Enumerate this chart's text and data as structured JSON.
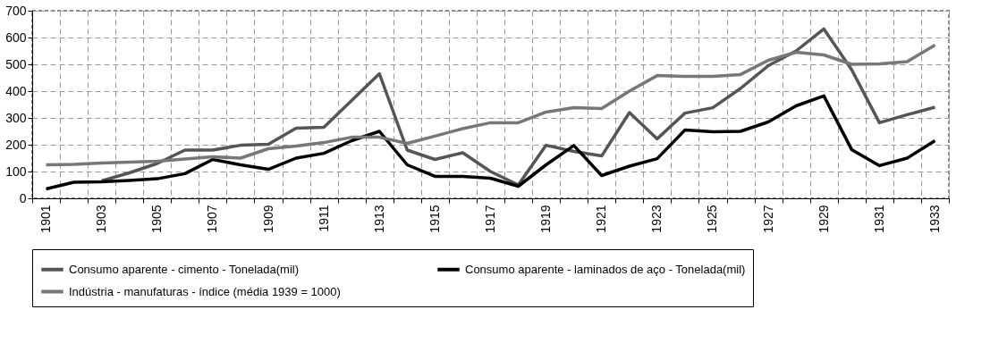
{
  "chart_data": {
    "type": "line",
    "categories": [
      "1901",
      null,
      "1903",
      null,
      "1905",
      null,
      "1907",
      null,
      "1909",
      null,
      "1911",
      null,
      "1913",
      null,
      "1915",
      null,
      "1917",
      null,
      "1919",
      null,
      "1921",
      null,
      "1923",
      null,
      "1925",
      null,
      "1927",
      null,
      "1929",
      null,
      "1931",
      null,
      "1933"
    ],
    "series": [
      {
        "name": "Consumo aparente - cimento - Tonelada(mil)",
        "color": "#555555",
        "values": [
          null,
          null,
          65,
          95,
          130,
          180,
          180,
          198,
          202,
          262,
          265,
          365,
          465,
          180,
          145,
          170,
          100,
          50,
          198,
          175,
          158,
          320,
          222,
          318,
          338,
          410,
          495,
          550,
          632,
          480,
          282,
          312,
          340
        ]
      },
      {
        "name": "Consumo aparente - laminados de aço - Tonelada(mil)",
        "color": "#000000",
        "values": [
          35,
          60,
          62,
          67,
          73,
          92,
          145,
          125,
          108,
          150,
          168,
          215,
          250,
          125,
          82,
          82,
          75,
          45,
          125,
          197,
          85,
          120,
          148,
          255,
          248,
          250,
          285,
          345,
          382,
          182,
          122,
          150,
          215
        ]
      },
      {
        "name": "Indústria - manufaturas - índice (média 1939 = 1000)",
        "color": "#777777",
        "values": [
          125,
          127,
          132,
          135,
          138,
          147,
          155,
          150,
          185,
          195,
          208,
          228,
          228,
          205,
          232,
          260,
          282,
          282,
          322,
          338,
          335,
          400,
          458,
          455,
          455,
          462,
          515,
          545,
          535,
          500,
          502,
          510,
          572
        ]
      }
    ],
    "ylim": [
      0,
      700
    ],
    "yticks": [
      0,
      100,
      200,
      300,
      400,
      500,
      600,
      700
    ],
    "grid": true,
    "legend": "bottom",
    "line_style": "solid",
    "marker": "none"
  }
}
